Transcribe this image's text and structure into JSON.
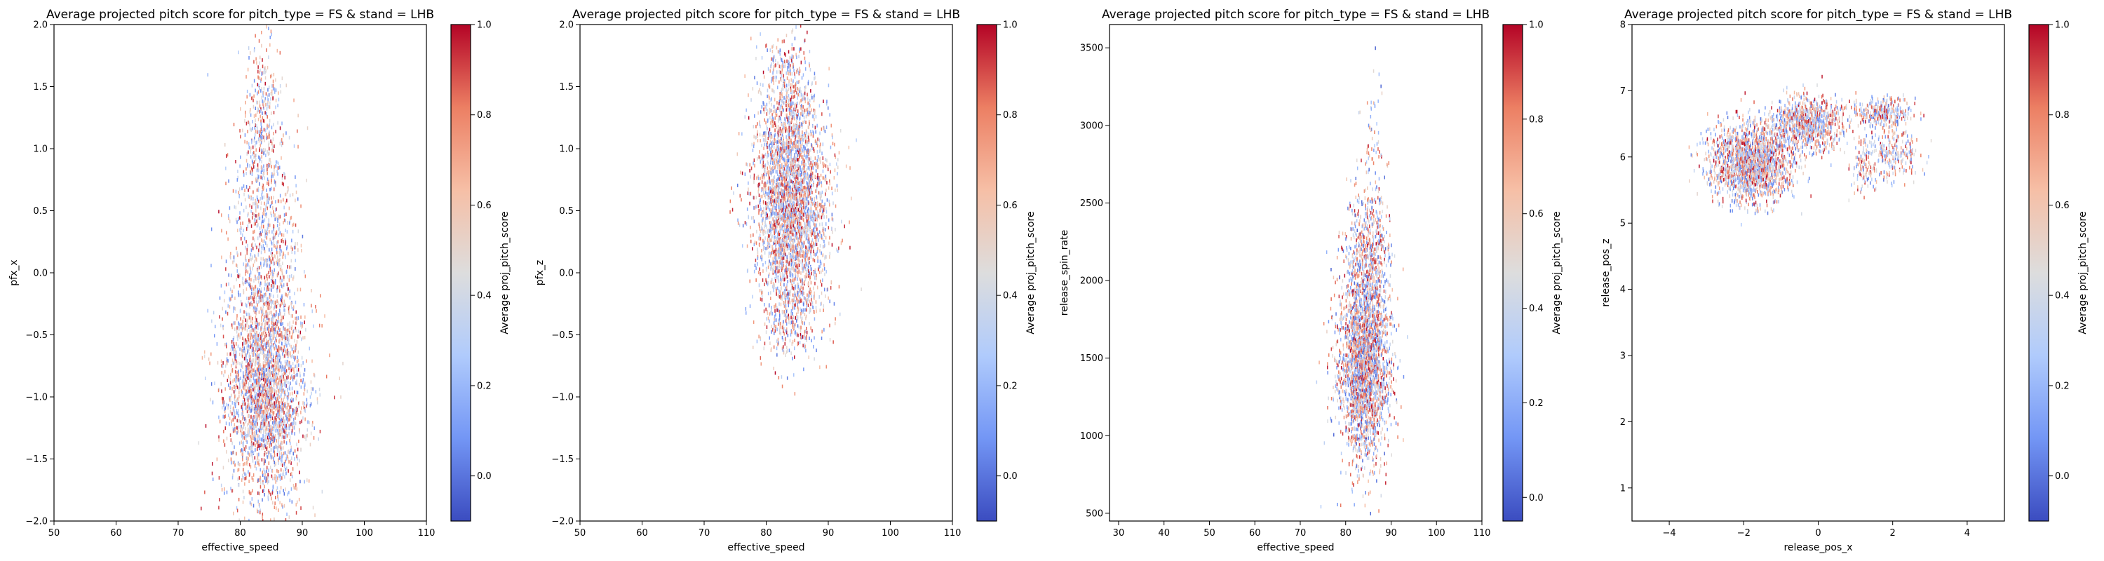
{
  "colormap": {
    "name": "coolwarm",
    "stops": [
      "#3b4cc0",
      "#7396f5",
      "#b0cbfc",
      "#dddddd",
      "#f6bfa6",
      "#ec7f63",
      "#b40426"
    ]
  },
  "chart_data": [
    {
      "type": "scatter",
      "title": "Average projected pitch score for pitch_type = FS & stand = LHB",
      "xlabel": "effective_speed",
      "ylabel": "pfx_x",
      "xlim": [
        50,
        110
      ],
      "ylim": [
        -2.0,
        2.0
      ],
      "xticks": [
        50,
        60,
        70,
        80,
        90,
        100,
        110
      ],
      "yticks": [
        -2.0,
        -1.5,
        -1.0,
        -0.5,
        0.0,
        0.5,
        1.0,
        1.5,
        2.0
      ],
      "colorbar": {
        "label": "Average proj_pitch_score",
        "min": -0.1,
        "max": 1.0,
        "ticks": [
          0.0,
          0.2,
          0.4,
          0.6,
          0.8,
          1.0
        ]
      },
      "clusters": [
        {
          "cx": 84,
          "cy": -0.95,
          "sx": 3.2,
          "sy": 0.45,
          "n": 2600
        },
        {
          "cx": 84,
          "cy": 0.2,
          "sx": 2.8,
          "sy": 0.6,
          "n": 900
        },
        {
          "cx": 83.5,
          "cy": 1.2,
          "sx": 1.3,
          "sy": 0.35,
          "n": 250
        }
      ],
      "grid": false
    },
    {
      "type": "scatter",
      "title": "Average projected pitch score for pitch_type = FS & stand = LHB",
      "xlabel": "effective_speed",
      "ylabel": "pfx_z",
      "xlim": [
        50,
        110
      ],
      "ylim": [
        -2.0,
        2.0
      ],
      "xticks": [
        50,
        60,
        70,
        80,
        90,
        100,
        110
      ],
      "yticks": [
        -2.0,
        -1.5,
        -1.0,
        -0.5,
        0.0,
        0.5,
        1.0,
        1.5,
        2.0
      ],
      "colorbar": {
        "label": "Average proj_pitch_score",
        "min": -0.1,
        "max": 1.0,
        "ticks": [
          0.0,
          0.2,
          0.4,
          0.6,
          0.8,
          1.0
        ]
      },
      "clusters": [
        {
          "cx": 84,
          "cy": 0.55,
          "sx": 3.0,
          "sy": 0.42,
          "n": 3000
        },
        {
          "cx": 83.5,
          "cy": 1.3,
          "sx": 2.2,
          "sy": 0.3,
          "n": 500
        },
        {
          "cx": 84,
          "cy": -0.35,
          "sx": 2.5,
          "sy": 0.2,
          "n": 300
        }
      ],
      "grid": false
    },
    {
      "type": "scatter",
      "title": "Average projected pitch score for pitch_type = FS & stand = LHB",
      "xlabel": "effective_speed",
      "ylabel": "release_spin_rate",
      "xlim": [
        28,
        110
      ],
      "ylim": [
        450,
        3650
      ],
      "xticks": [
        30,
        40,
        50,
        60,
        70,
        80,
        90,
        100,
        110
      ],
      "yticks": [
        500,
        1000,
        1500,
        2000,
        2500,
        3000,
        3500
      ],
      "colorbar": {
        "label": "Average proj_pitch_score",
        "min": -0.05,
        "max": 1.0,
        "ticks": [
          0.0,
          0.2,
          0.4,
          0.6,
          0.8,
          1.0
        ]
      },
      "clusters": [
        {
          "cx": 84,
          "cy": 1450,
          "sx": 2.8,
          "sy": 300,
          "n": 2600
        },
        {
          "cx": 85,
          "cy": 2150,
          "sx": 2.4,
          "sy": 250,
          "n": 600
        },
        {
          "cx": 86,
          "cy": 2900,
          "sx": 1.5,
          "sy": 280,
          "n": 60
        }
      ],
      "grid": false
    },
    {
      "type": "scatter",
      "title": "Average projected pitch score for pitch_type = FS & stand = LHB",
      "xlabel": "release_pos_x",
      "ylabel": "release_pos_z",
      "xlim": [
        -5,
        5
      ],
      "ylim": [
        0.5,
        8.0
      ],
      "xticks": [
        -4,
        -2,
        0,
        2,
        4
      ],
      "yticks": [
        1,
        2,
        3,
        4,
        5,
        6,
        7,
        8
      ],
      "colorbar": {
        "label": "Average proj_pitch_score",
        "min": -0.1,
        "max": 1.0,
        "ticks": [
          0.0,
          0.2,
          0.4,
          0.6,
          0.8,
          1.0
        ]
      },
      "clusters": [
        {
          "cx": -1.8,
          "cy": 5.9,
          "sx": 0.55,
          "sy": 0.28,
          "n": 1900
        },
        {
          "cx": -0.3,
          "cy": 6.5,
          "sx": 0.55,
          "sy": 0.2,
          "n": 900
        },
        {
          "cx": 1.7,
          "cy": 6.65,
          "sx": 0.4,
          "sy": 0.12,
          "n": 300
        },
        {
          "cx": 1.25,
          "cy": 5.85,
          "sx": 0.2,
          "sy": 0.2,
          "n": 120
        },
        {
          "cx": 2.1,
          "cy": 6.05,
          "sx": 0.35,
          "sy": 0.2,
          "n": 200
        }
      ],
      "grid": false
    }
  ]
}
